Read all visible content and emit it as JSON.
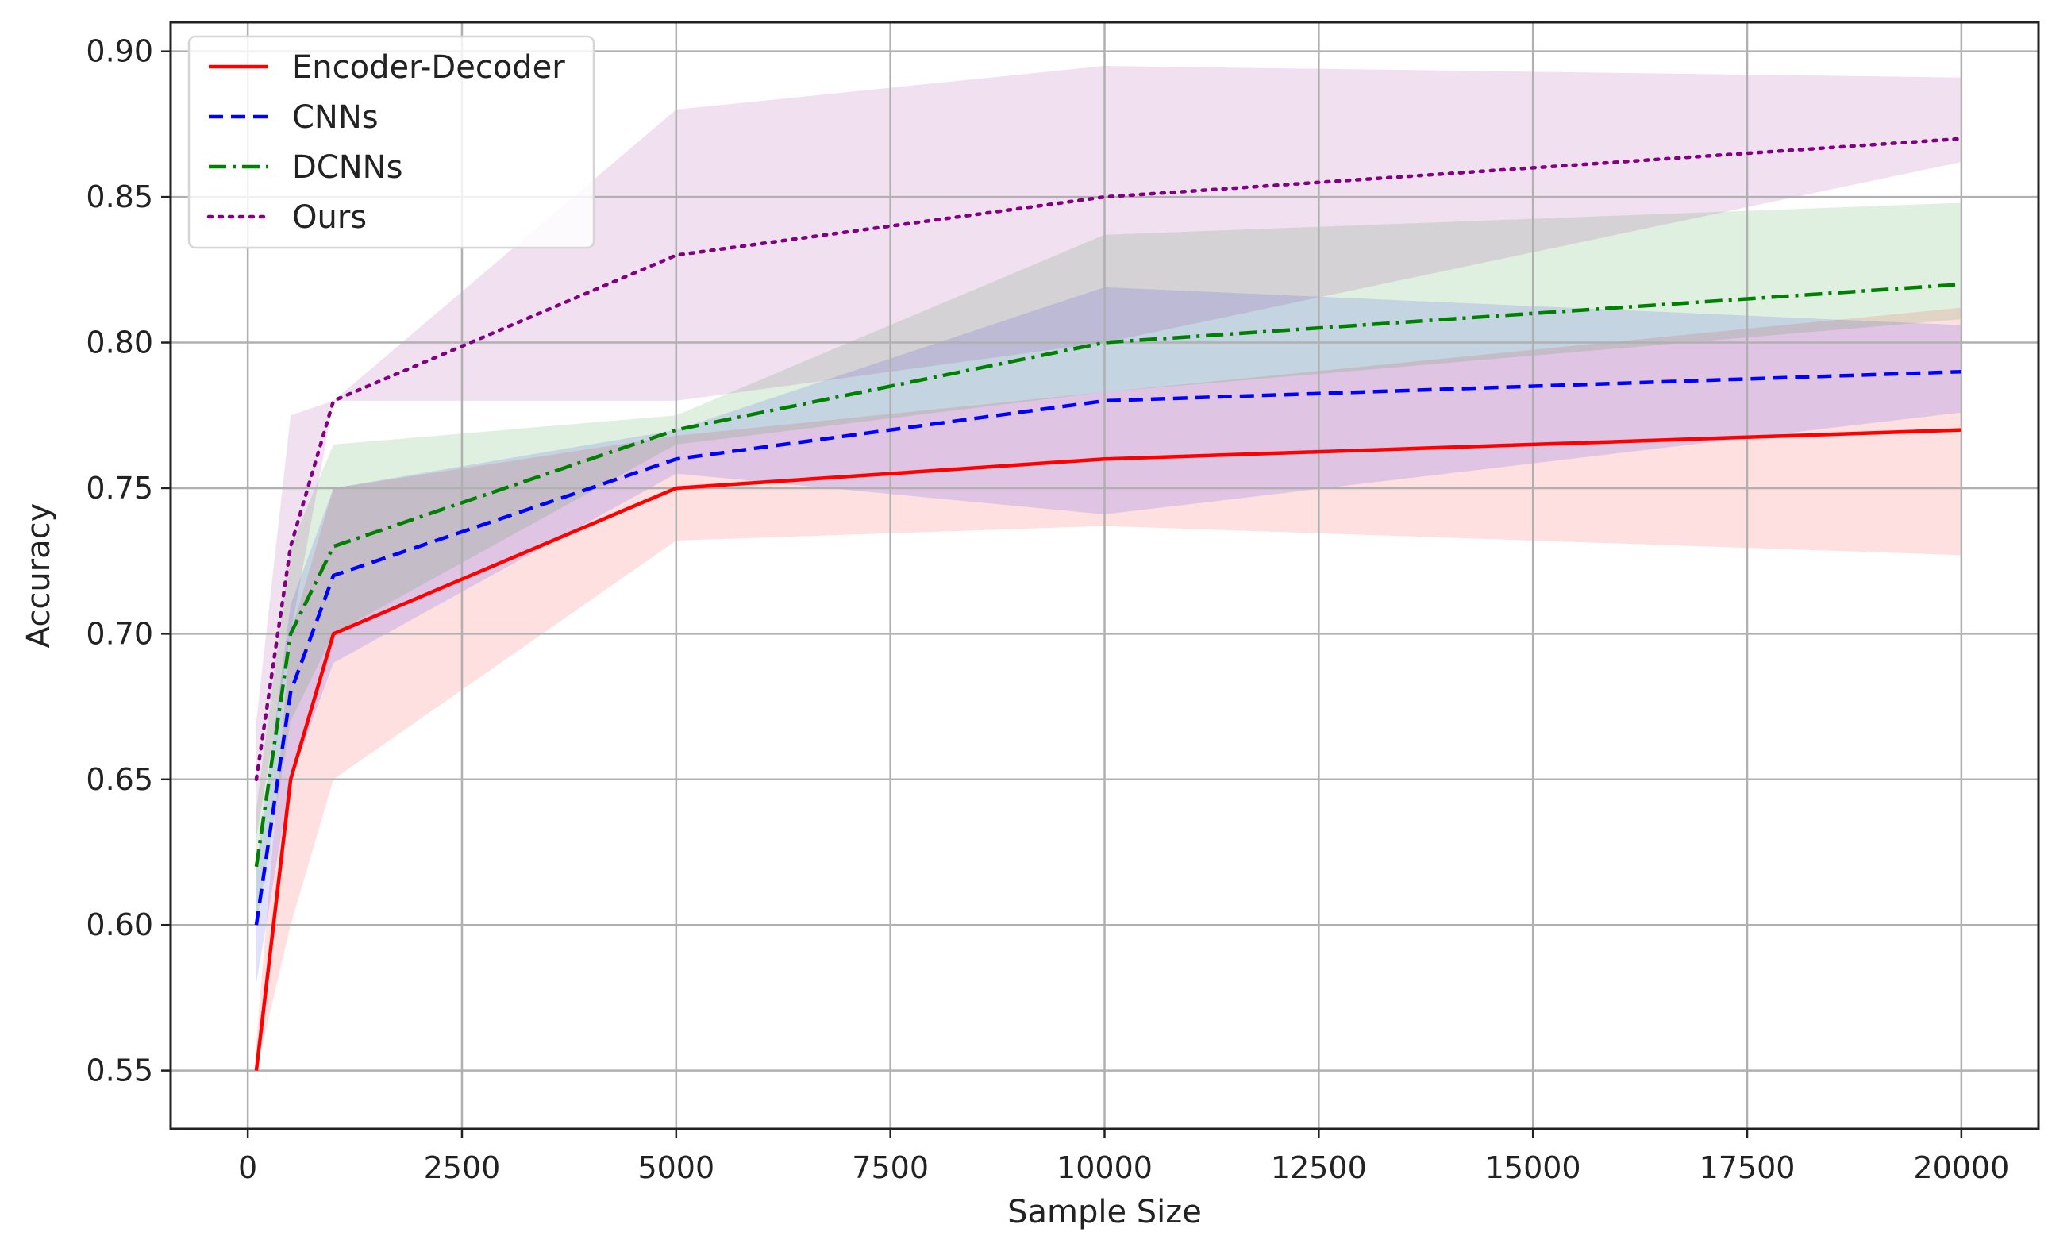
{
  "chart_data": {
    "type": "line",
    "title": "",
    "xlabel": "Sample Size",
    "ylabel": "Accuracy",
    "xlim": [
      -900,
      20900
    ],
    "ylim": [
      0.53,
      0.91
    ],
    "grid": true,
    "legend_position": "upper left",
    "x": [
      100,
      500,
      1000,
      5000,
      10000,
      20000
    ],
    "xticks": [
      0,
      2500,
      5000,
      7500,
      10000,
      12500,
      15000,
      17500,
      20000
    ],
    "xtick_labels": [
      "0",
      "2500",
      "5000",
      "7500",
      "10000",
      "12500",
      "15000",
      "17500",
      "20000"
    ],
    "yticks": [
      0.55,
      0.6,
      0.65,
      0.7,
      0.75,
      0.8,
      0.85,
      0.9
    ],
    "ytick_labels": [
      "0.55",
      "0.60",
      "0.65",
      "0.70",
      "0.75",
      "0.80",
      "0.85",
      "0.90"
    ],
    "series": [
      {
        "name": "Encoder-Decoder",
        "color": "#ff0000",
        "dash": "solid",
        "values": [
          0.55,
          0.65,
          0.7,
          0.75,
          0.76,
          0.77
        ],
        "lower": [
          0.55,
          0.6,
          0.65,
          0.732,
          0.737,
          0.727
        ],
        "upper": [
          0.56,
          0.7,
          0.75,
          0.768,
          0.783,
          0.812
        ]
      },
      {
        "name": "CNNs",
        "color": "#0000ff",
        "dash": "dashed",
        "values": [
          0.6,
          0.68,
          0.72,
          0.76,
          0.78,
          0.79
        ],
        "lower": [
          0.58,
          0.65,
          0.69,
          0.755,
          0.741,
          0.776
        ],
        "upper": [
          0.62,
          0.71,
          0.75,
          0.77,
          0.819,
          0.806
        ]
      },
      {
        "name": "DCNNs",
        "color": "#008000",
        "dash": "dashdot",
        "values": [
          0.62,
          0.7,
          0.73,
          0.77,
          0.8,
          0.82
        ],
        "lower": [
          0.6,
          0.67,
          0.7,
          0.765,
          0.783,
          0.808
        ],
        "upper": [
          0.64,
          0.73,
          0.765,
          0.775,
          0.837,
          0.848
        ]
      },
      {
        "name": "Ours",
        "color": "#800080",
        "dash": "dotted",
        "values": [
          0.65,
          0.73,
          0.78,
          0.83,
          0.85,
          0.87
        ],
        "lower": [
          0.63,
          0.7,
          0.78,
          0.78,
          0.8,
          0.862
        ],
        "upper": [
          0.67,
          0.775,
          0.78,
          0.88,
          0.895,
          0.891
        ]
      }
    ]
  }
}
